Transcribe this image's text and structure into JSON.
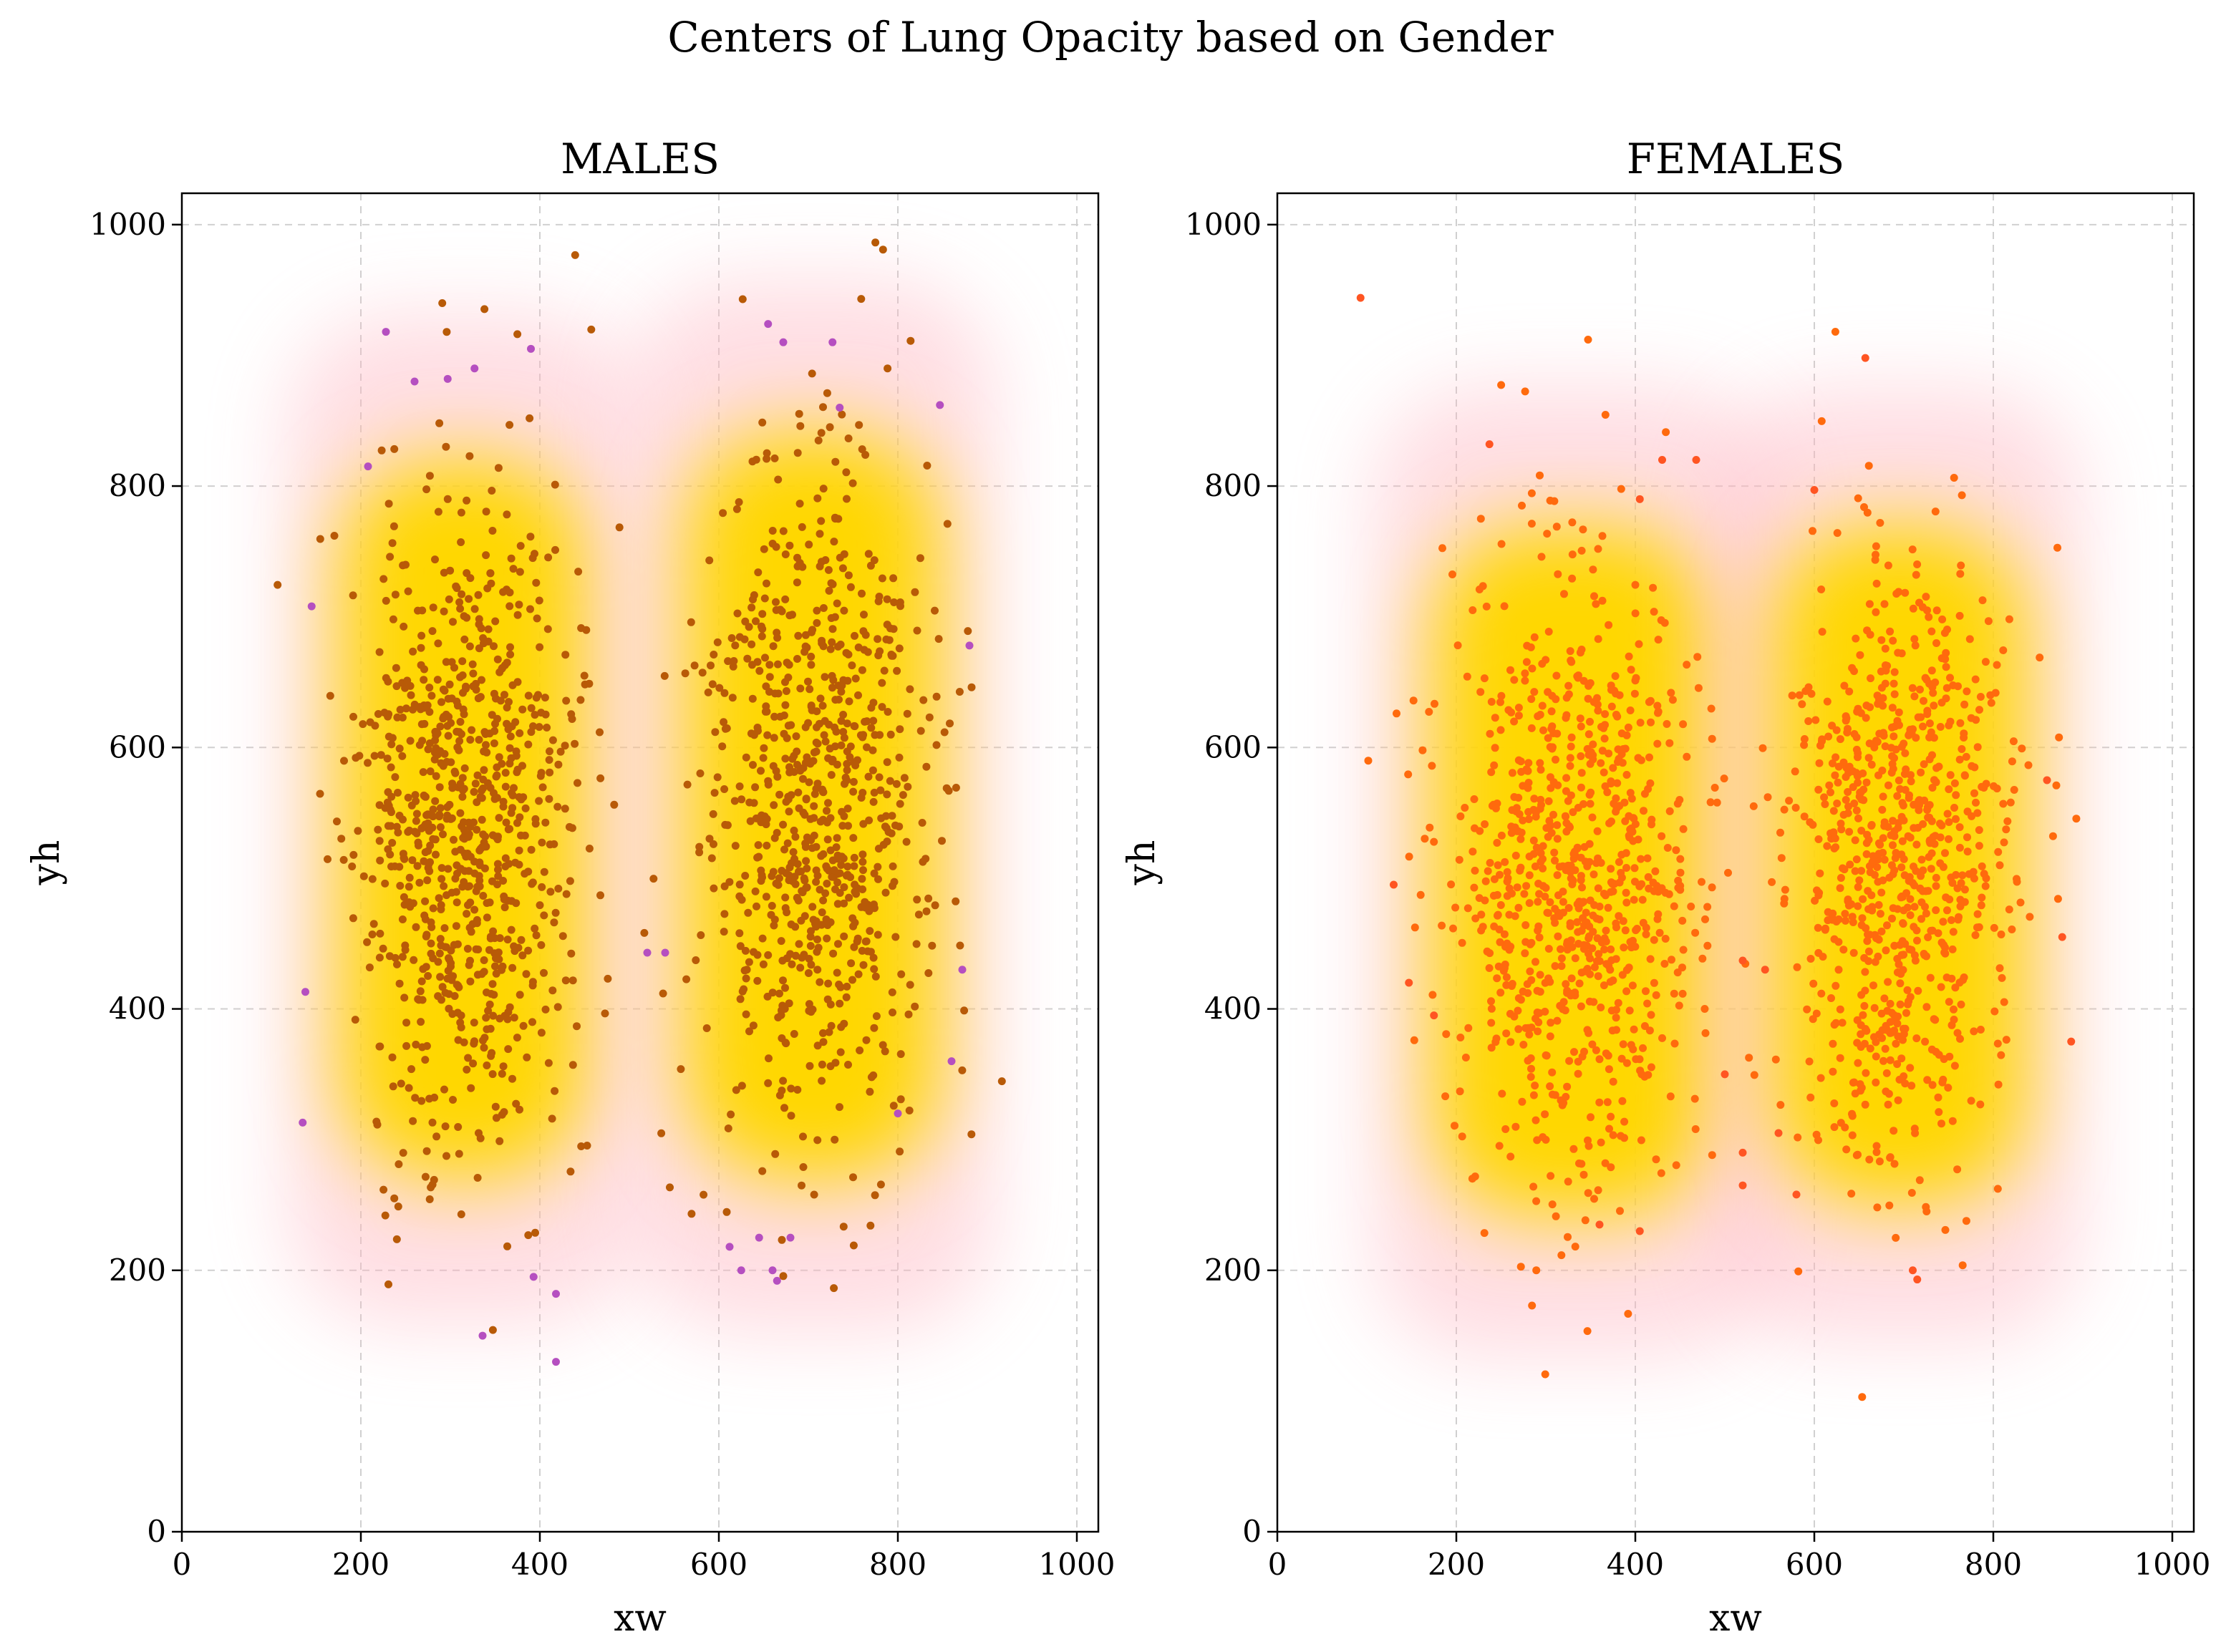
{
  "chart_data": {
    "suptitle": "Centers of Lung Opacity based on Gender",
    "charts": [
      {
        "type": "scatter",
        "title": "MALES",
        "xlabel": "xw",
        "ylabel": "yh",
        "xlim": [
          0,
          1024
        ],
        "ylim": [
          0,
          1024
        ],
        "xticks": [
          0,
          200,
          400,
          600,
          800,
          1000
        ],
        "yticks": [
          0,
          200,
          400,
          600,
          800,
          1000
        ],
        "grid": true,
        "point_color": "#b85a07",
        "outlier_color": "#b54fc0",
        "density_colors": [
          "#ffd700",
          "#ffb6c1"
        ],
        "clusters": [
          {
            "cx": 315,
            "cy": 545,
            "sx": 60,
            "sy": 125,
            "n": 820,
            "seed": 11
          },
          {
            "cx": 705,
            "cy": 555,
            "sx": 62,
            "sy": 130,
            "n": 780,
            "seed": 23
          }
        ],
        "highlight_points": [
          [
            228,
            918
          ],
          [
            260,
            880
          ],
          [
            297,
            882
          ],
          [
            327,
            890
          ],
          [
            390,
            905
          ],
          [
            655,
            924
          ],
          [
            672,
            910
          ],
          [
            727,
            910
          ],
          [
            847,
            862
          ],
          [
            735,
            860
          ],
          [
            336,
            150
          ],
          [
            418,
            130
          ],
          [
            418,
            182
          ],
          [
            393,
            195
          ],
          [
            660,
            200
          ],
          [
            665,
            192
          ],
          [
            625,
            200
          ],
          [
            612,
            218
          ],
          [
            645,
            225
          ],
          [
            680,
            225
          ],
          [
            135,
            313
          ],
          [
            138,
            413
          ],
          [
            145,
            708
          ],
          [
            208,
            815
          ],
          [
            880,
            678
          ],
          [
            872,
            430
          ],
          [
            860,
            360
          ],
          [
            800,
            320
          ],
          [
            520,
            443
          ],
          [
            540,
            443
          ]
        ]
      },
      {
        "type": "scatter",
        "title": "FEMALES",
        "xlabel": "xw",
        "ylabel": "yh",
        "xlim": [
          0,
          1024
        ],
        "ylim": [
          0,
          1024
        ],
        "xticks": [
          0,
          200,
          400,
          600,
          800,
          1000
        ],
        "yticks": [
          0,
          200,
          400,
          600,
          800,
          1000
        ],
        "grid": true,
        "point_color": "#ff6a0d",
        "outlier_color": "#ff5522",
        "density_colors": [
          "#ffd700",
          "#ffb6c1"
        ],
        "clusters": [
          {
            "cx": 330,
            "cy": 505,
            "sx": 68,
            "sy": 120,
            "n": 820,
            "seed": 37
          },
          {
            "cx": 695,
            "cy": 510,
            "sx": 62,
            "sy": 118,
            "n": 780,
            "seed": 49
          }
        ],
        "highlight_points": [
          [
            93,
            944
          ],
          [
            657,
            898
          ],
          [
            237,
            832
          ],
          [
            430,
            820
          ],
          [
            468,
            820
          ],
          [
            405,
            790
          ],
          [
            600,
            797
          ],
          [
            710,
            200
          ],
          [
            715,
            193
          ],
          [
            405,
            230
          ],
          [
            360,
            235
          ],
          [
            130,
            495
          ],
          [
            147,
            420
          ],
          [
            175,
            395
          ],
          [
            887,
            375
          ],
          [
            877,
            455
          ],
          [
            860,
            575
          ],
          [
            520,
            265
          ],
          [
            520,
            290
          ],
          [
            500,
            350
          ],
          [
            560,
            305
          ],
          [
            580,
            258
          ],
          [
            520,
            437
          ],
          [
            545,
            430
          ]
        ]
      }
    ]
  }
}
